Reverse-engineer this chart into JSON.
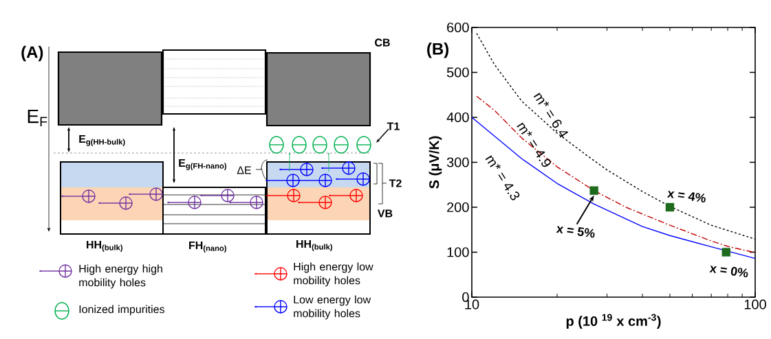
{
  "chart_data": [
    {
      "type": "other",
      "title": "(A)",
      "annotations": [
        "CB",
        "E$_{F}$",
        "E$_{g(HH-bulk)}$",
        "E$_{g(FH-nano)}$",
        "ΔE",
        "T1",
        "T2",
        "VB",
        "HH$_{(bulk)}$",
        "FH$_{(nano)}$",
        "HH$_{(bulk)}$",
        "High energy high mobility holes",
        "Ionized impurities",
        "High energy low mobility holes",
        "Low energy low mobility holes"
      ]
    },
    {
      "type": "line",
      "title": "(B)",
      "xlabel": "p (10 $^{19}$ x cm$^{-3}$)",
      "ylabel": "S (μV/K)",
      "log": "x",
      "xlim": [
        10,
        100
      ],
      "xticks": [
        10,
        100
      ],
      "ylim": [
        0,
        600
      ],
      "yticks": [
        0,
        100,
        200,
        300,
        400,
        500,
        600
      ],
      "marker": "none",
      "series": [
        {
          "name": "m* = 6.4",
          "color": "#000000",
          "line_style": "dashed",
          "x": [
            10.4,
            12,
            15,
            20,
            25,
            30,
            40,
            50,
            70,
            100
          ],
          "values": [
            587,
            518,
            436,
            365,
            319,
            283,
            235,
            202,
            160,
            129
          ]
        },
        {
          "name": "m* = 4.9",
          "color": "#c00000",
          "line_style": "dashdot",
          "x": [
            10.4,
            12,
            15,
            20,
            27,
            35,
            50,
            70,
            80,
            100
          ],
          "values": [
            447,
            416,
            354,
            290,
            237,
            200,
            160,
            125,
            113,
            99
          ]
        },
        {
          "name": "m* = 4.3",
          "color": "#0000ff",
          "line_style": "solid",
          "x": [
            10,
            15,
            20,
            27,
            40,
            50,
            70,
            80,
            100
          ],
          "values": [
            400,
            308,
            253,
            207,
            157,
            137,
            112,
            null,
            86
          ]
        },
        {
          "type": "scatter",
          "marker": "square",
          "color": "#1e6b1e",
          "x": [
            27,
            50,
            79
          ],
          "values": [
            237,
            200,
            100
          ]
        }
      ],
      "annotations": [
        {
          "text": "x = 5%",
          "x": 27,
          "y": 237
        },
        {
          "text": "x = 4%",
          "x": 50,
          "y": 200
        },
        {
          "text": "x = 0%",
          "x": 79,
          "y": 100
        }
      ]
    }
  ]
}
